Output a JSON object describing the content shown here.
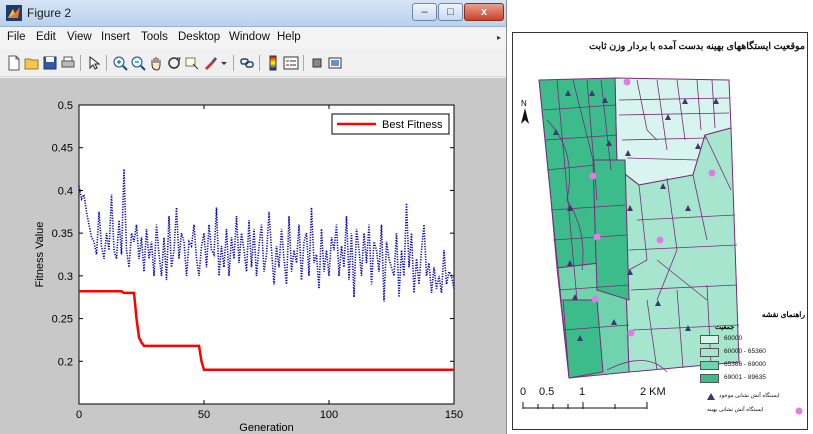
{
  "window": {
    "title": "Figure 2",
    "buttons": {
      "minimize": "–",
      "maximize": "□",
      "close": "x"
    }
  },
  "menu": [
    "File",
    "Edit",
    "View",
    "Insert",
    "Tools",
    "Desktop",
    "Window",
    "Help"
  ],
  "menu_arrow": "▸",
  "toolbar_icons": [
    "new-figure-icon",
    "open-file-icon",
    "save-icon",
    "print-icon",
    "pointer-icon",
    "zoom-in-icon",
    "zoom-out-icon",
    "pan-icon",
    "rotate-3d-icon",
    "data-cursor-icon",
    "brush-icon",
    "link-icon",
    "colorbar-icon",
    "legend-icon",
    "hide-plot-tools-icon",
    "show-plot-tools-icon"
  ],
  "chart_data": {
    "type": "line",
    "xlabel": "Generation",
    "ylabel": "Fitness Value",
    "xlim": [
      0,
      150
    ],
    "ylim": [
      0.15,
      0.5
    ],
    "xticks": [
      0,
      50,
      100,
      150
    ],
    "yticks": [
      0.2,
      0.25,
      0.3,
      0.35,
      0.4,
      0.45,
      0.5
    ],
    "ytick_labels": [
      "0.2",
      "0.25",
      "0.3",
      "0.35",
      "0.4",
      "0.45",
      "0.5"
    ],
    "legend": {
      "label": "Best Fitness",
      "position": "top-right"
    },
    "series": [
      {
        "name": "Best Fitness",
        "color": "#ff0000",
        "style": "solid",
        "x": [
          0,
          17,
          18,
          22,
          23,
          24,
          25,
          26,
          27,
          48,
          49,
          50,
          150
        ],
        "y": [
          0.282,
          0.282,
          0.28,
          0.28,
          0.25,
          0.228,
          0.222,
          0.218,
          0.218,
          0.218,
          0.2,
          0.19,
          0.19
        ]
      },
      {
        "color": "#0000cc",
        "style": "dotted",
        "x": [
          0,
          1,
          2,
          3,
          4,
          5,
          6,
          7,
          8,
          9,
          10,
          11,
          12,
          13,
          14,
          15,
          16,
          17,
          18,
          19,
          20,
          21,
          22,
          23,
          24,
          25,
          26,
          27,
          28,
          29,
          30,
          31,
          32,
          33,
          34,
          35,
          36,
          37,
          38,
          39,
          40,
          41,
          42,
          43,
          44,
          45,
          46,
          47,
          48,
          49,
          50,
          51,
          52,
          53,
          54,
          55,
          56,
          57,
          58,
          59,
          60,
          61,
          62,
          63,
          64,
          65,
          66,
          67,
          68,
          69,
          70,
          71,
          72,
          73,
          74,
          75,
          76,
          77,
          78,
          79,
          80,
          81,
          82,
          83,
          84,
          85,
          86,
          87,
          88,
          89,
          90,
          91,
          92,
          93,
          94,
          95,
          96,
          97,
          98,
          99,
          100,
          101,
          102,
          103,
          104,
          105,
          106,
          107,
          108,
          109,
          110,
          111,
          112,
          113,
          114,
          115,
          116,
          117,
          118,
          119,
          120,
          121,
          122,
          123,
          124,
          125,
          126,
          127,
          128,
          129,
          130,
          131,
          132,
          133,
          134,
          135,
          136,
          137,
          138,
          139,
          140,
          141,
          142,
          143,
          144,
          145,
          146,
          147,
          148,
          149,
          150
        ],
        "y": [
          0.405,
          0.39,
          0.395,
          0.375,
          0.36,
          0.345,
          0.34,
          0.325,
          0.375,
          0.335,
          0.32,
          0.35,
          0.33,
          0.395,
          0.33,
          0.32,
          0.365,
          0.325,
          0.425,
          0.33,
          0.31,
          0.35,
          0.34,
          0.36,
          0.32,
          0.345,
          0.305,
          0.355,
          0.32,
          0.34,
          0.3,
          0.36,
          0.325,
          0.3,
          0.345,
          0.295,
          0.37,
          0.31,
          0.33,
          0.38,
          0.32,
          0.35,
          0.34,
          0.3,
          0.34,
          0.335,
          0.36,
          0.32,
          0.3,
          0.335,
          0.35,
          0.31,
          0.36,
          0.33,
          0.325,
          0.38,
          0.3,
          0.335,
          0.31,
          0.355,
          0.3,
          0.345,
          0.32,
          0.37,
          0.315,
          0.35,
          0.33,
          0.305,
          0.365,
          0.31,
          0.355,
          0.3,
          0.335,
          0.36,
          0.305,
          0.325,
          0.375,
          0.33,
          0.29,
          0.335,
          0.31,
          0.355,
          0.32,
          0.29,
          0.37,
          0.305,
          0.33,
          0.315,
          0.36,
          0.295,
          0.34,
          0.35,
          0.3,
          0.38,
          0.315,
          0.325,
          0.285,
          0.355,
          0.305,
          0.33,
          0.3,
          0.345,
          0.33,
          0.36,
          0.3,
          0.335,
          0.31,
          0.37,
          0.295,
          0.35,
          0.275,
          0.355,
          0.33,
          0.3,
          0.35,
          0.315,
          0.36,
          0.29,
          0.34,
          0.33,
          0.305,
          0.36,
          0.27,
          0.34,
          0.32,
          0.31,
          0.3,
          0.35,
          0.275,
          0.33,
          0.3,
          0.385,
          0.31,
          0.35,
          0.28,
          0.32,
          0.29,
          0.33,
          0.36,
          0.3,
          0.315,
          0.28,
          0.31,
          0.285,
          0.3,
          0.28,
          0.33,
          0.29,
          0.305,
          0.3,
          0.285
        ]
      }
    ]
  },
  "map": {
    "title": "موقعیت ایستگاههای بهینه بدست آمده با بردار وزن ثابت",
    "north_label": "N",
    "legend_title": "راهنمای نقشه",
    "legend_subtitle": "جمعیت",
    "classes": [
      {
        "label": "60000",
        "color": "#d8f4ee"
      },
      {
        "label": "60000 - 65360",
        "color": "#a6e6cf"
      },
      {
        "label": "65366 - 69000",
        "color": "#6fd4ad"
      },
      {
        "label": "69001 - 89635",
        "color": "#3cbb8b"
      }
    ],
    "symbols": [
      {
        "label": "ایستگاه آتش نشانی موجود",
        "color": "#3a3a6e",
        "shape": "triangle"
      },
      {
        "label": "ایستگاه آتش نشانی بهینه",
        "color": "#e07be8",
        "shape": "circle"
      }
    ],
    "scale": {
      "labels": [
        "0",
        "0.5",
        "1",
        "2 KM"
      ]
    }
  }
}
